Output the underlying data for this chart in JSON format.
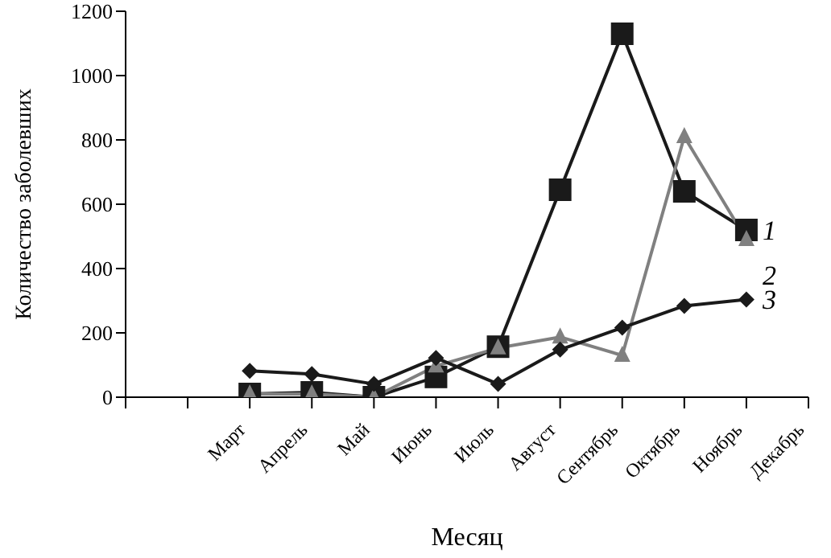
{
  "chart_data": {
    "type": "line",
    "xlabel": "Месяц",
    "ylabel": "Количество заболевших",
    "categories": [
      null,
      null,
      "Март",
      "Апрель",
      "Май",
      "Июнь",
      "Июль",
      "Август",
      "Сентябрь",
      "Октябрь",
      "Ноябрь",
      "Декабрь"
    ],
    "ylim": [
      0,
      1200
    ],
    "yticks": [
      0,
      200,
      400,
      600,
      800,
      1000,
      1200
    ],
    "grid": false,
    "legend": false,
    "series": [
      {
        "name": "1",
        "color": "#1a1a1a",
        "marker": "square",
        "values": [
          null,
          null,
          10,
          15,
          0,
          63,
          157,
          645,
          1130,
          640,
          520,
          null
        ]
      },
      {
        "name": "2",
        "color": "#808080",
        "marker": "triangle",
        "values": [
          null,
          null,
          10,
          10,
          0,
          97,
          153,
          187,
          130,
          810,
          490,
          null
        ]
      },
      {
        "name": "3",
        "color": "#1a1a1a",
        "marker": "diamond",
        "values": [
          null,
          null,
          82,
          72,
          41,
          122,
          41,
          148,
          216,
          284,
          304,
          null
        ]
      }
    ]
  }
}
